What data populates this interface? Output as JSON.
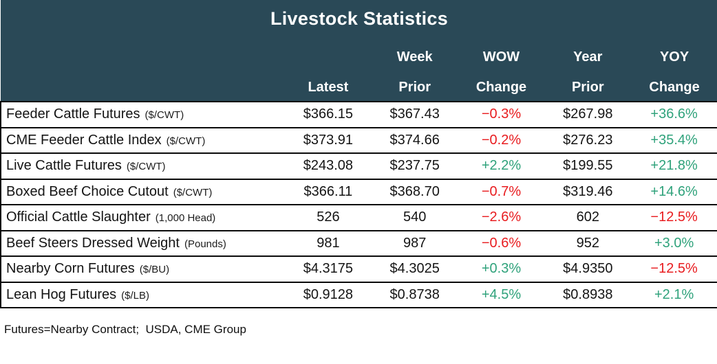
{
  "title": "Livestock Statistics",
  "footnote": "Futures=Nearby Contract;  USDA, CME Group",
  "colors": {
    "header_bg": "#2a4957",
    "header_text": "#ffffff",
    "negative": "#e81c1f",
    "positive": "#2fa27b",
    "border": "#0a0a0a",
    "body_text": "#141414"
  },
  "chart_data": {
    "type": "table",
    "title": "Livestock Statistics",
    "columns": [
      "",
      "Latest",
      "Week Prior",
      "WOW Change",
      "Year Prior",
      "YOY Change"
    ],
    "header_lines": {
      "latest": {
        "top": "",
        "bottom": "Latest"
      },
      "week": {
        "top": "Week",
        "bottom": "Prior"
      },
      "wow": {
        "top": "WOW",
        "bottom": "Change"
      },
      "year": {
        "top": "Year",
        "bottom": "Prior"
      },
      "yoy": {
        "top": "YOY",
        "bottom": "Change"
      }
    },
    "rows": [
      {
        "label": "Feeder Cattle Futures",
        "unit": "($/CWT)",
        "latest": "$366.15",
        "week_prior": "$367.43",
        "wow_change": "−0.3%",
        "year_prior": "$267.98",
        "yoy_change": "+36.6%"
      },
      {
        "label": "CME Feeder Cattle Index",
        "unit": "($/CWT)",
        "latest": "$373.91",
        "week_prior": "$374.66",
        "wow_change": "−0.2%",
        "year_prior": "$276.23",
        "yoy_change": "+35.4%"
      },
      {
        "label": "Live Cattle Futures",
        "unit": "($/CWT)",
        "latest": "$243.08",
        "week_prior": "$237.75",
        "wow_change": "+2.2%",
        "year_prior": "$199.55",
        "yoy_change": "+21.8%"
      },
      {
        "label": "Boxed Beef Choice Cutout",
        "unit": "($/CWT)",
        "latest": "$366.11",
        "week_prior": "$368.70",
        "wow_change": "−0.7%",
        "year_prior": "$319.46",
        "yoy_change": "+14.6%"
      },
      {
        "label": "Official Cattle Slaughter",
        "unit": "(1,000 Head)",
        "latest": "526",
        "week_prior": "540",
        "wow_change": "−2.6%",
        "year_prior": "602",
        "yoy_change": "−12.5%"
      },
      {
        "label": "Beef Steers Dressed Weight",
        "unit": "(Pounds)",
        "latest": "981",
        "week_prior": "987",
        "wow_change": "−0.6%",
        "year_prior": "952",
        "yoy_change": "+3.0%"
      },
      {
        "label": "Nearby Corn Futures",
        "unit": "($/BU)",
        "latest": "$4.3175",
        "week_prior": "$4.3025",
        "wow_change": "+0.3%",
        "year_prior": "$4.9350",
        "yoy_change": "−12.5%"
      },
      {
        "label": "Lean Hog Futures",
        "unit": "($/LB)",
        "latest": "$0.9128",
        "week_prior": "$0.8738",
        "wow_change": "+4.5%",
        "year_prior": "$0.8938",
        "yoy_change": "+2.1%"
      }
    ]
  }
}
